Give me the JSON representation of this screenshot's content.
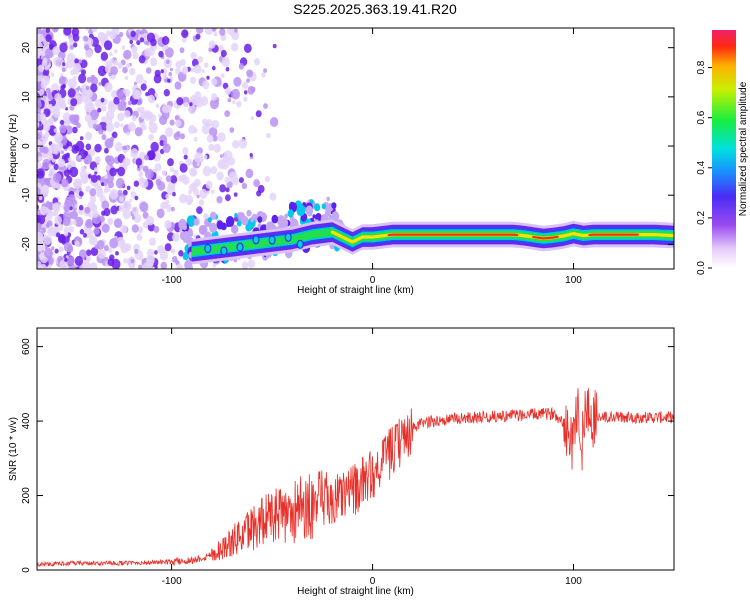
{
  "title": "S225.2025.363.19.41.R20",
  "chart_data": [
    {
      "type": "heatmap",
      "xlabel": "Height of straight line (km)",
      "ylabel": "Frequency (Hz)",
      "xlim": [
        -167,
        150
      ],
      "ylim": [
        -25,
        24
      ],
      "xticks": [
        -100,
        0,
        100
      ],
      "yticks": [
        -20,
        -10,
        0,
        10,
        20
      ],
      "ridge": {
        "x": [
          -90,
          -80,
          -70,
          -60,
          -50,
          -40,
          -30,
          -20,
          -15,
          -10,
          -5,
          0,
          10,
          30,
          50,
          70,
          75,
          80,
          85,
          90,
          95,
          100,
          105,
          110,
          120,
          130,
          140,
          150
        ],
        "freq": [
          -21.5,
          -21,
          -20.5,
          -20,
          -19.5,
          -19,
          -18,
          -17.5,
          -18.5,
          -19.5,
          -18.5,
          -18.5,
          -18,
          -18,
          -18,
          -18,
          -18.2,
          -18.5,
          -18.8,
          -18.6,
          -18.3,
          -17.8,
          -18.2,
          -18,
          -18,
          -18,
          -18,
          -18.2
        ]
      },
      "colorbar": {
        "label": "Normalized spectral amplitude",
        "range": [
          0.0,
          0.95
        ],
        "ticks": [
          0.0,
          0.2,
          0.4,
          0.6,
          0.8
        ]
      }
    },
    {
      "type": "line",
      "xlabel": "Height of straight line (km)",
      "ylabel": "SNR (10 * v/v)",
      "xlim": [
        -167,
        150
      ],
      "ylim": [
        0,
        650
      ],
      "xticks": [
        -100,
        0,
        100
      ],
      "yticks": [
        0,
        200,
        400,
        600
      ],
      "color": "#e8302a",
      "series": [
        {
          "name": "SNR",
          "x": [
            -167,
            -150,
            -130,
            -110,
            -100,
            -90,
            -85,
            -80,
            -75,
            -70,
            -65,
            -60,
            -55,
            -50,
            -45,
            -40,
            -35,
            -30,
            -25,
            -20,
            -15,
            -10,
            -5,
            0,
            5,
            10,
            15,
            20,
            25,
            30,
            40,
            50,
            60,
            70,
            80,
            90,
            95,
            100,
            102,
            104,
            106,
            110,
            120,
            130,
            140,
            150
          ],
          "y": [
            15,
            18,
            18,
            20,
            22,
            26,
            32,
            42,
            58,
            75,
            95,
            115,
            130,
            140,
            145,
            155,
            165,
            175,
            175,
            185,
            200,
            210,
            235,
            260,
            290,
            320,
            350,
            380,
            395,
            400,
            405,
            410,
            412,
            415,
            418,
            420,
            400,
            340,
            470,
            320,
            440,
            410,
            410,
            410,
            410,
            410
          ]
        }
      ]
    }
  ]
}
